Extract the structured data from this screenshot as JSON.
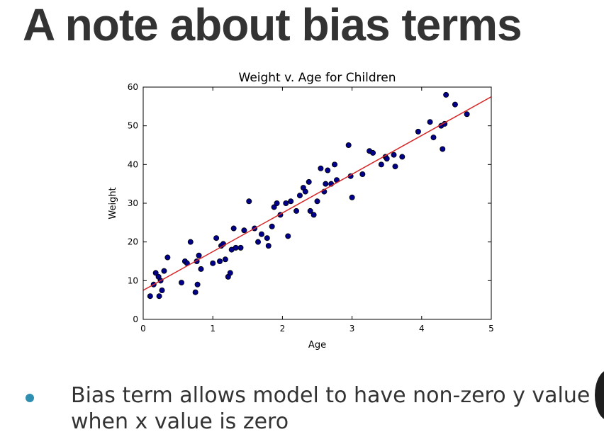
{
  "slide": {
    "title": "A note about bias terms",
    "bullets": [
      {
        "lines": [
          "Bias term allows model to have non-zero y value",
          "when x value is zero"
        ],
        "dot_color": "#2f8fb0"
      }
    ]
  },
  "chart_data": {
    "type": "scatter",
    "title": "Weight v. Age for Children",
    "xlabel": "Age",
    "ylabel": "Weight",
    "xlim": [
      0,
      5
    ],
    "ylim": [
      0,
      60
    ],
    "xticks": [
      0,
      1,
      2,
      3,
      4,
      5
    ],
    "yticks": [
      0,
      10,
      20,
      30,
      40,
      50,
      60
    ],
    "grid": false,
    "point_color": "#00008b",
    "line_color": "#d62728",
    "series": [
      {
        "type": "scatter",
        "points": [
          [
            0.1,
            6
          ],
          [
            0.15,
            9
          ],
          [
            0.18,
            12
          ],
          [
            0.22,
            11
          ],
          [
            0.23,
            6
          ],
          [
            0.25,
            10
          ],
          [
            0.27,
            7.5
          ],
          [
            0.3,
            12.5
          ],
          [
            0.35,
            16
          ],
          [
            0.55,
            9.5
          ],
          [
            0.6,
            15
          ],
          [
            0.63,
            14.5
          ],
          [
            0.68,
            20
          ],
          [
            0.75,
            7
          ],
          [
            0.77,
            15
          ],
          [
            0.78,
            9
          ],
          [
            0.8,
            16.5
          ],
          [
            0.83,
            13
          ],
          [
            1.0,
            14.5
          ],
          [
            1.05,
            21
          ],
          [
            1.1,
            15
          ],
          [
            1.12,
            19
          ],
          [
            1.15,
            19.5
          ],
          [
            1.18,
            15.5
          ],
          [
            1.22,
            11
          ],
          [
            1.25,
            12
          ],
          [
            1.27,
            18
          ],
          [
            1.3,
            23.5
          ],
          [
            1.33,
            18.5
          ],
          [
            1.4,
            18.5
          ],
          [
            1.45,
            23
          ],
          [
            1.52,
            30.5
          ],
          [
            1.6,
            23.5
          ],
          [
            1.65,
            20
          ],
          [
            1.7,
            22
          ],
          [
            1.78,
            21
          ],
          [
            1.8,
            19
          ],
          [
            1.85,
            24
          ],
          [
            1.88,
            29
          ],
          [
            1.92,
            30
          ],
          [
            1.97,
            27
          ],
          [
            2.05,
            30
          ],
          [
            2.08,
            21.5
          ],
          [
            2.12,
            30.5
          ],
          [
            2.2,
            28
          ],
          [
            2.25,
            32
          ],
          [
            2.3,
            34
          ],
          [
            2.33,
            33
          ],
          [
            2.38,
            35.5
          ],
          [
            2.4,
            28
          ],
          [
            2.45,
            27
          ],
          [
            2.5,
            30.5
          ],
          [
            2.55,
            39
          ],
          [
            2.6,
            33
          ],
          [
            2.62,
            35
          ],
          [
            2.65,
            38.5
          ],
          [
            2.7,
            35
          ],
          [
            2.75,
            40
          ],
          [
            2.78,
            36
          ],
          [
            2.95,
            45
          ],
          [
            2.98,
            37
          ],
          [
            3.0,
            31.5
          ],
          [
            3.15,
            37.5
          ],
          [
            3.25,
            43.5
          ],
          [
            3.3,
            43
          ],
          [
            3.42,
            40
          ],
          [
            3.48,
            42
          ],
          [
            3.5,
            41.5
          ],
          [
            3.6,
            42.5
          ],
          [
            3.62,
            39.5
          ],
          [
            3.72,
            42
          ],
          [
            3.95,
            48.5
          ],
          [
            4.12,
            51
          ],
          [
            4.17,
            47
          ],
          [
            4.28,
            50
          ],
          [
            4.3,
            44
          ],
          [
            4.33,
            50.5
          ],
          [
            4.35,
            58
          ],
          [
            4.48,
            55.5
          ],
          [
            4.65,
            53
          ]
        ]
      },
      {
        "type": "line",
        "x": [
          0,
          5
        ],
        "y": [
          7.5,
          57.5
        ]
      }
    ]
  }
}
